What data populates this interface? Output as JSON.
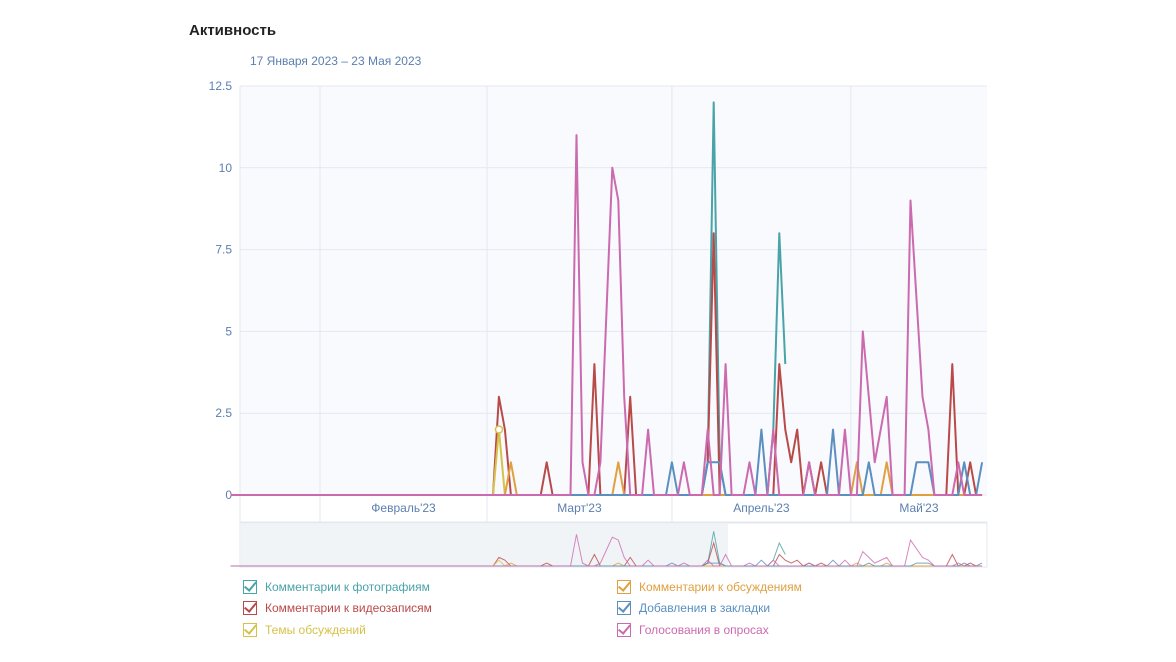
{
  "title": "Активность",
  "chart_data": {
    "type": "line",
    "subtitle": "17 Января 2023 – 23 Мая 2023",
    "x_unit": "day index from 17 Jan 2023",
    "x_range": [
      0,
      126
    ],
    "ylim": [
      0,
      12.5
    ],
    "yticks": [
      "0",
      "2.5",
      "5",
      "7.5",
      "10",
      "12.5"
    ],
    "yticks_values": [
      0,
      2.5,
      5,
      7.5,
      10,
      12.5
    ],
    "month_ticks": [
      {
        "label": "Февраль'23",
        "day": 15
      },
      {
        "label": "Март'23",
        "day": 43
      },
      {
        "label": "Апрель'23",
        "day": 74
      },
      {
        "label": "Май'23",
        "day": 104
      }
    ],
    "grid": true,
    "navigator_selected_from_day": 82,
    "series": [
      {
        "name": "Комментарии к фотографиям",
        "color": "#4aa3a8",
        "points": [
          [
            0,
            0
          ],
          [
            79,
            0
          ],
          [
            80,
            1
          ],
          [
            81,
            12
          ],
          [
            82,
            1
          ],
          [
            83,
            0
          ],
          [
            90,
            0
          ],
          [
            91,
            2
          ],
          [
            92,
            8
          ],
          [
            93,
            4
          ]
        ]
      },
      {
        "name": "Комментарии к видеозаписям",
        "color": "#b94a4a",
        "points": [
          [
            0,
            0
          ],
          [
            44,
            0
          ],
          [
            45,
            3
          ],
          [
            46,
            2
          ],
          [
            47,
            0
          ],
          [
            52,
            0
          ],
          [
            53,
            1
          ],
          [
            54,
            0
          ],
          [
            60,
            0
          ],
          [
            61,
            4
          ],
          [
            62,
            0
          ],
          [
            66,
            0
          ],
          [
            67,
            3
          ],
          [
            68,
            0
          ],
          [
            79,
            0
          ],
          [
            80,
            1
          ],
          [
            81,
            8
          ],
          [
            82,
            0
          ],
          [
            91,
            0
          ],
          [
            92,
            4
          ],
          [
            93,
            2
          ],
          [
            94,
            1
          ],
          [
            95,
            2
          ],
          [
            96,
            0
          ],
          [
            97,
            1
          ],
          [
            98,
            0
          ],
          [
            99,
            1
          ],
          [
            100,
            0
          ],
          [
            120,
            0
          ],
          [
            121,
            4
          ],
          [
            122,
            0
          ],
          [
            123,
            0
          ],
          [
            124,
            1
          ],
          [
            125,
            0
          ]
        ]
      },
      {
        "name": "Темы обсуждений",
        "color": "#d6c24a",
        "points": [
          [
            0,
            0
          ],
          [
            44,
            0
          ],
          [
            45,
            2
          ],
          [
            46,
            0
          ],
          [
            126,
            0
          ]
        ]
      },
      {
        "name": "Комментарии к обсуждениям",
        "color": "#e0a040",
        "points": [
          [
            0,
            0
          ],
          [
            46,
            0
          ],
          [
            47,
            1
          ],
          [
            48,
            0
          ],
          [
            64,
            0
          ],
          [
            65,
            1
          ],
          [
            66,
            0
          ],
          [
            104,
            0
          ],
          [
            105,
            1
          ],
          [
            106,
            0
          ],
          [
            109,
            0
          ],
          [
            110,
            1
          ],
          [
            111,
            0
          ],
          [
            126,
            0
          ]
        ]
      },
      {
        "name": "Добавления в закладки",
        "color": "#5a8fc0",
        "points": [
          [
            0,
            0
          ],
          [
            73,
            0
          ],
          [
            74,
            1
          ],
          [
            75,
            0
          ],
          [
            79,
            0
          ],
          [
            80,
            1
          ],
          [
            82,
            1
          ],
          [
            83,
            0
          ],
          [
            88,
            0
          ],
          [
            89,
            2
          ],
          [
            90,
            0
          ],
          [
            100,
            0
          ],
          [
            101,
            2
          ],
          [
            102,
            0
          ],
          [
            106,
            0
          ],
          [
            107,
            1
          ],
          [
            108,
            0
          ],
          [
            114,
            0
          ],
          [
            115,
            1
          ],
          [
            117,
            1
          ],
          [
            118,
            0
          ],
          [
            122,
            0
          ],
          [
            123,
            1
          ],
          [
            124,
            0
          ],
          [
            125,
            0
          ],
          [
            126,
            1
          ]
        ]
      },
      {
        "name": "Голосования в опросах",
        "color": "#cc6ab0",
        "points": [
          [
            0,
            0
          ],
          [
            57,
            0
          ],
          [
            58,
            11
          ],
          [
            59,
            1
          ],
          [
            60,
            0
          ],
          [
            61,
            0
          ],
          [
            62,
            1
          ],
          [
            64,
            10
          ],
          [
            65,
            9
          ],
          [
            66,
            3
          ],
          [
            67,
            0
          ],
          [
            69,
            0
          ],
          [
            70,
            2
          ],
          [
            71,
            0
          ],
          [
            75,
            0
          ],
          [
            76,
            1
          ],
          [
            77,
            0
          ],
          [
            79,
            0
          ],
          [
            80,
            2
          ],
          [
            81,
            0
          ],
          [
            82,
            0
          ],
          [
            83,
            4
          ],
          [
            84,
            0
          ],
          [
            86,
            0
          ],
          [
            87,
            1
          ],
          [
            88,
            0
          ],
          [
            90,
            0
          ],
          [
            91,
            2
          ],
          [
            92,
            0
          ],
          [
            96,
            0
          ],
          [
            97,
            1
          ],
          [
            98,
            0
          ],
          [
            102,
            0
          ],
          [
            103,
            2
          ],
          [
            104,
            0
          ],
          [
            105,
            0
          ],
          [
            106,
            5
          ],
          [
            107,
            3
          ],
          [
            108,
            1
          ],
          [
            110,
            3
          ],
          [
            111,
            0
          ],
          [
            113,
            0
          ],
          [
            114,
            9
          ],
          [
            115,
            6
          ],
          [
            116,
            3
          ],
          [
            117,
            2
          ],
          [
            118,
            0
          ],
          [
            121,
            0
          ],
          [
            122,
            1
          ],
          [
            123,
            0
          ],
          [
            126,
            0
          ]
        ]
      }
    ]
  },
  "legend": [
    "Комментарии к фотографиям",
    "Комментарии к видеозаписям",
    "Темы обсуждений",
    "Комментарии к обсуждениям",
    "Добавления в закладки",
    "Голосования в опросах"
  ]
}
